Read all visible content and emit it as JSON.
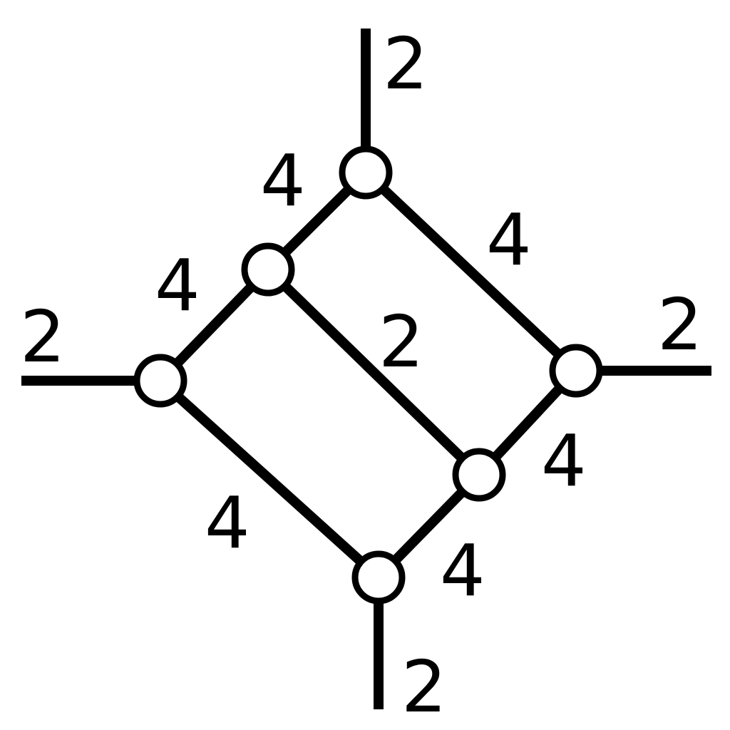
{
  "diagram": {
    "nodes": [
      {
        "id": "A"
      },
      {
        "id": "B"
      },
      {
        "id": "C"
      },
      {
        "id": "D"
      },
      {
        "id": "E"
      },
      {
        "id": "F"
      }
    ],
    "edges": [
      {
        "id": "e-top-stub",
        "label": "2"
      },
      {
        "id": "e-left-stub",
        "label": "2"
      },
      {
        "id": "e-right-stub",
        "label": "2"
      },
      {
        "id": "e-bottom-stub",
        "label": "2"
      },
      {
        "id": "e-A-B",
        "label": "4"
      },
      {
        "id": "e-B-C",
        "label": "4"
      },
      {
        "id": "e-A-D",
        "label": "4"
      },
      {
        "id": "e-B-E",
        "label": "2"
      },
      {
        "id": "e-C-F",
        "label": "4"
      },
      {
        "id": "e-D-E",
        "label": "4"
      },
      {
        "id": "e-E-F",
        "label": "4"
      }
    ],
    "colors": {
      "line": "#000000",
      "node_fill": "#ffffff",
      "background": "#ffffff"
    }
  }
}
